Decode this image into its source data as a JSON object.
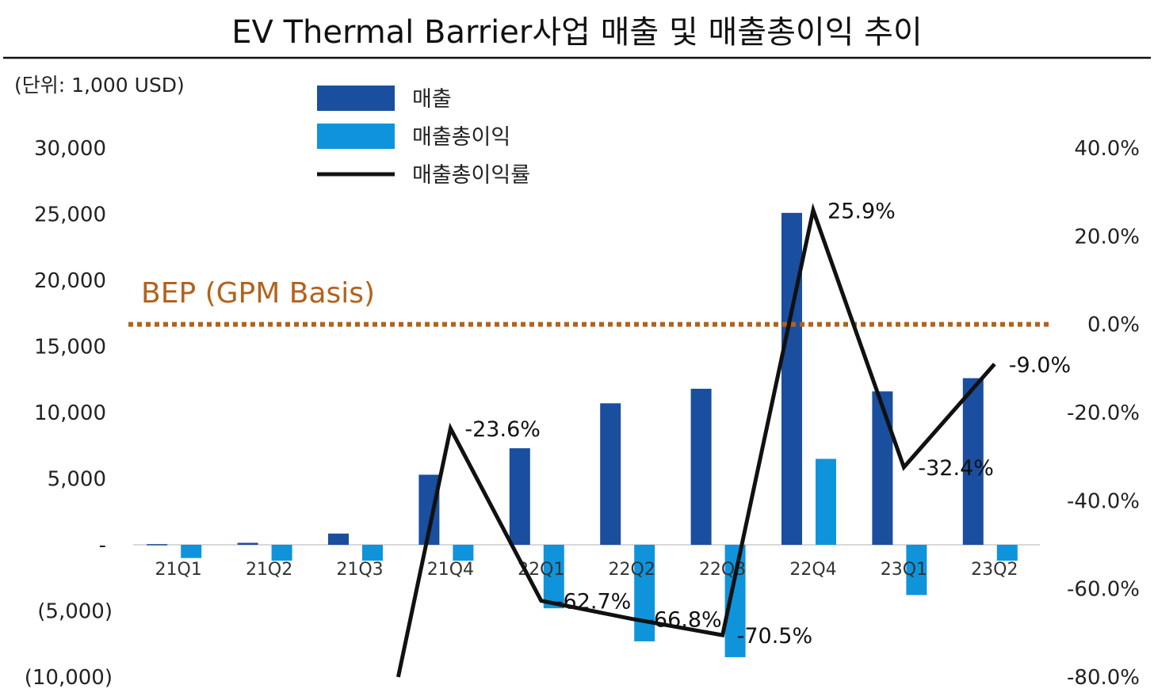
{
  "colors": {
    "revenue": "#1a4e9e",
    "gross_profit": "#0f94dc",
    "gpm_line": "#111111",
    "bep": "#b3621c"
  },
  "chart_data": {
    "type": "bar",
    "title": "EV Thermal Barrier사업 매출 및 매출총이익 추이",
    "unit_label": "(단위: 1,000 USD)",
    "categories": [
      "21Q1",
      "21Q2",
      "21Q3",
      "21Q4",
      "22Q1",
      "22Q2",
      "22Q3",
      "22Q4",
      "23Q1",
      "23Q2"
    ],
    "series": [
      {
        "name": "매출",
        "type": "bar",
        "axis": "left",
        "values": [
          50,
          150,
          850,
          5300,
          7300,
          10700,
          11800,
          25100,
          11600,
          12600
        ]
      },
      {
        "name": "매출총이익",
        "type": "bar",
        "axis": "left",
        "values": [
          -1000,
          -1200,
          -1200,
          -1200,
          -4800,
          -7300,
          -8500,
          6500,
          -3800,
          -1200
        ]
      },
      {
        "name": "매출총이익률",
        "type": "line",
        "axis": "right",
        "values": [
          null,
          null,
          null,
          -23.6,
          -62.7,
          -66.8,
          -70.5,
          25.9,
          -32.4,
          -9.0
        ],
        "line_start_value": -80
      }
    ],
    "data_labels": [
      "-23.6%",
      "-62.7%",
      "-66.8%",
      "-70.5%",
      "25.9%",
      "-32.4%",
      "-9.0%"
    ],
    "left_axis": {
      "ylim": [
        -10000,
        30000
      ],
      "ticks": [
        30000,
        25000,
        20000,
        15000,
        10000,
        5000,
        0,
        -5000,
        -10000
      ],
      "tick_labels": [
        "30,000",
        "25,000",
        "20,000",
        "15,000",
        "10,000",
        "5,000",
        "-",
        "(5,000)",
        "(10,000)"
      ]
    },
    "right_axis": {
      "ylim": [
        -80,
        40
      ],
      "ticks": [
        40,
        20,
        0,
        -20,
        -40,
        -60,
        -80
      ],
      "tick_labels": [
        "40.0%",
        "20.0%",
        "0.0%",
        "-20.0%",
        "-40.0%",
        "-60.0%",
        "-80.0%"
      ]
    },
    "reference_line": {
      "label": "BEP (GPM Basis)",
      "right_axis_value": 0,
      "style": "dotted"
    },
    "legend": {
      "position": "top-center"
    },
    "grid": false
  }
}
